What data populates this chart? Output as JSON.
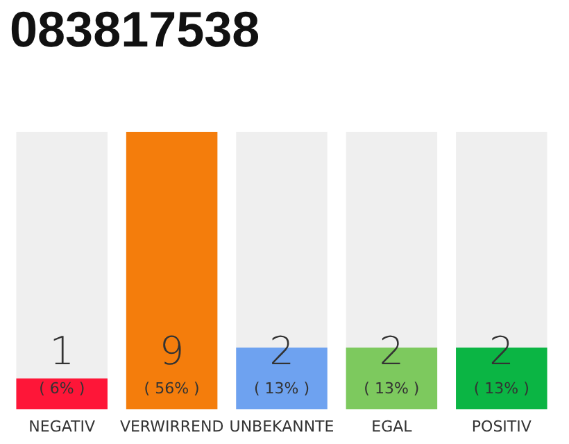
{
  "chart_data": {
    "type": "bar",
    "title": "083817538",
    "categories": [
      "NEGATIV",
      "VERWIRREND",
      "UNBEKANNTE",
      "EGAL",
      "POSITIV"
    ],
    "values": [
      1,
      9,
      2,
      2,
      2
    ],
    "colors": [
      "#fe1638",
      "#f47d0c",
      "#6ea2f0",
      "#7dc95e",
      "#0bb544"
    ],
    "data_labels": true,
    "annotations": [
      "( 6% )",
      "( 56% )",
      "( 13% )",
      "( 13% )",
      "( 13% )"
    ]
  }
}
